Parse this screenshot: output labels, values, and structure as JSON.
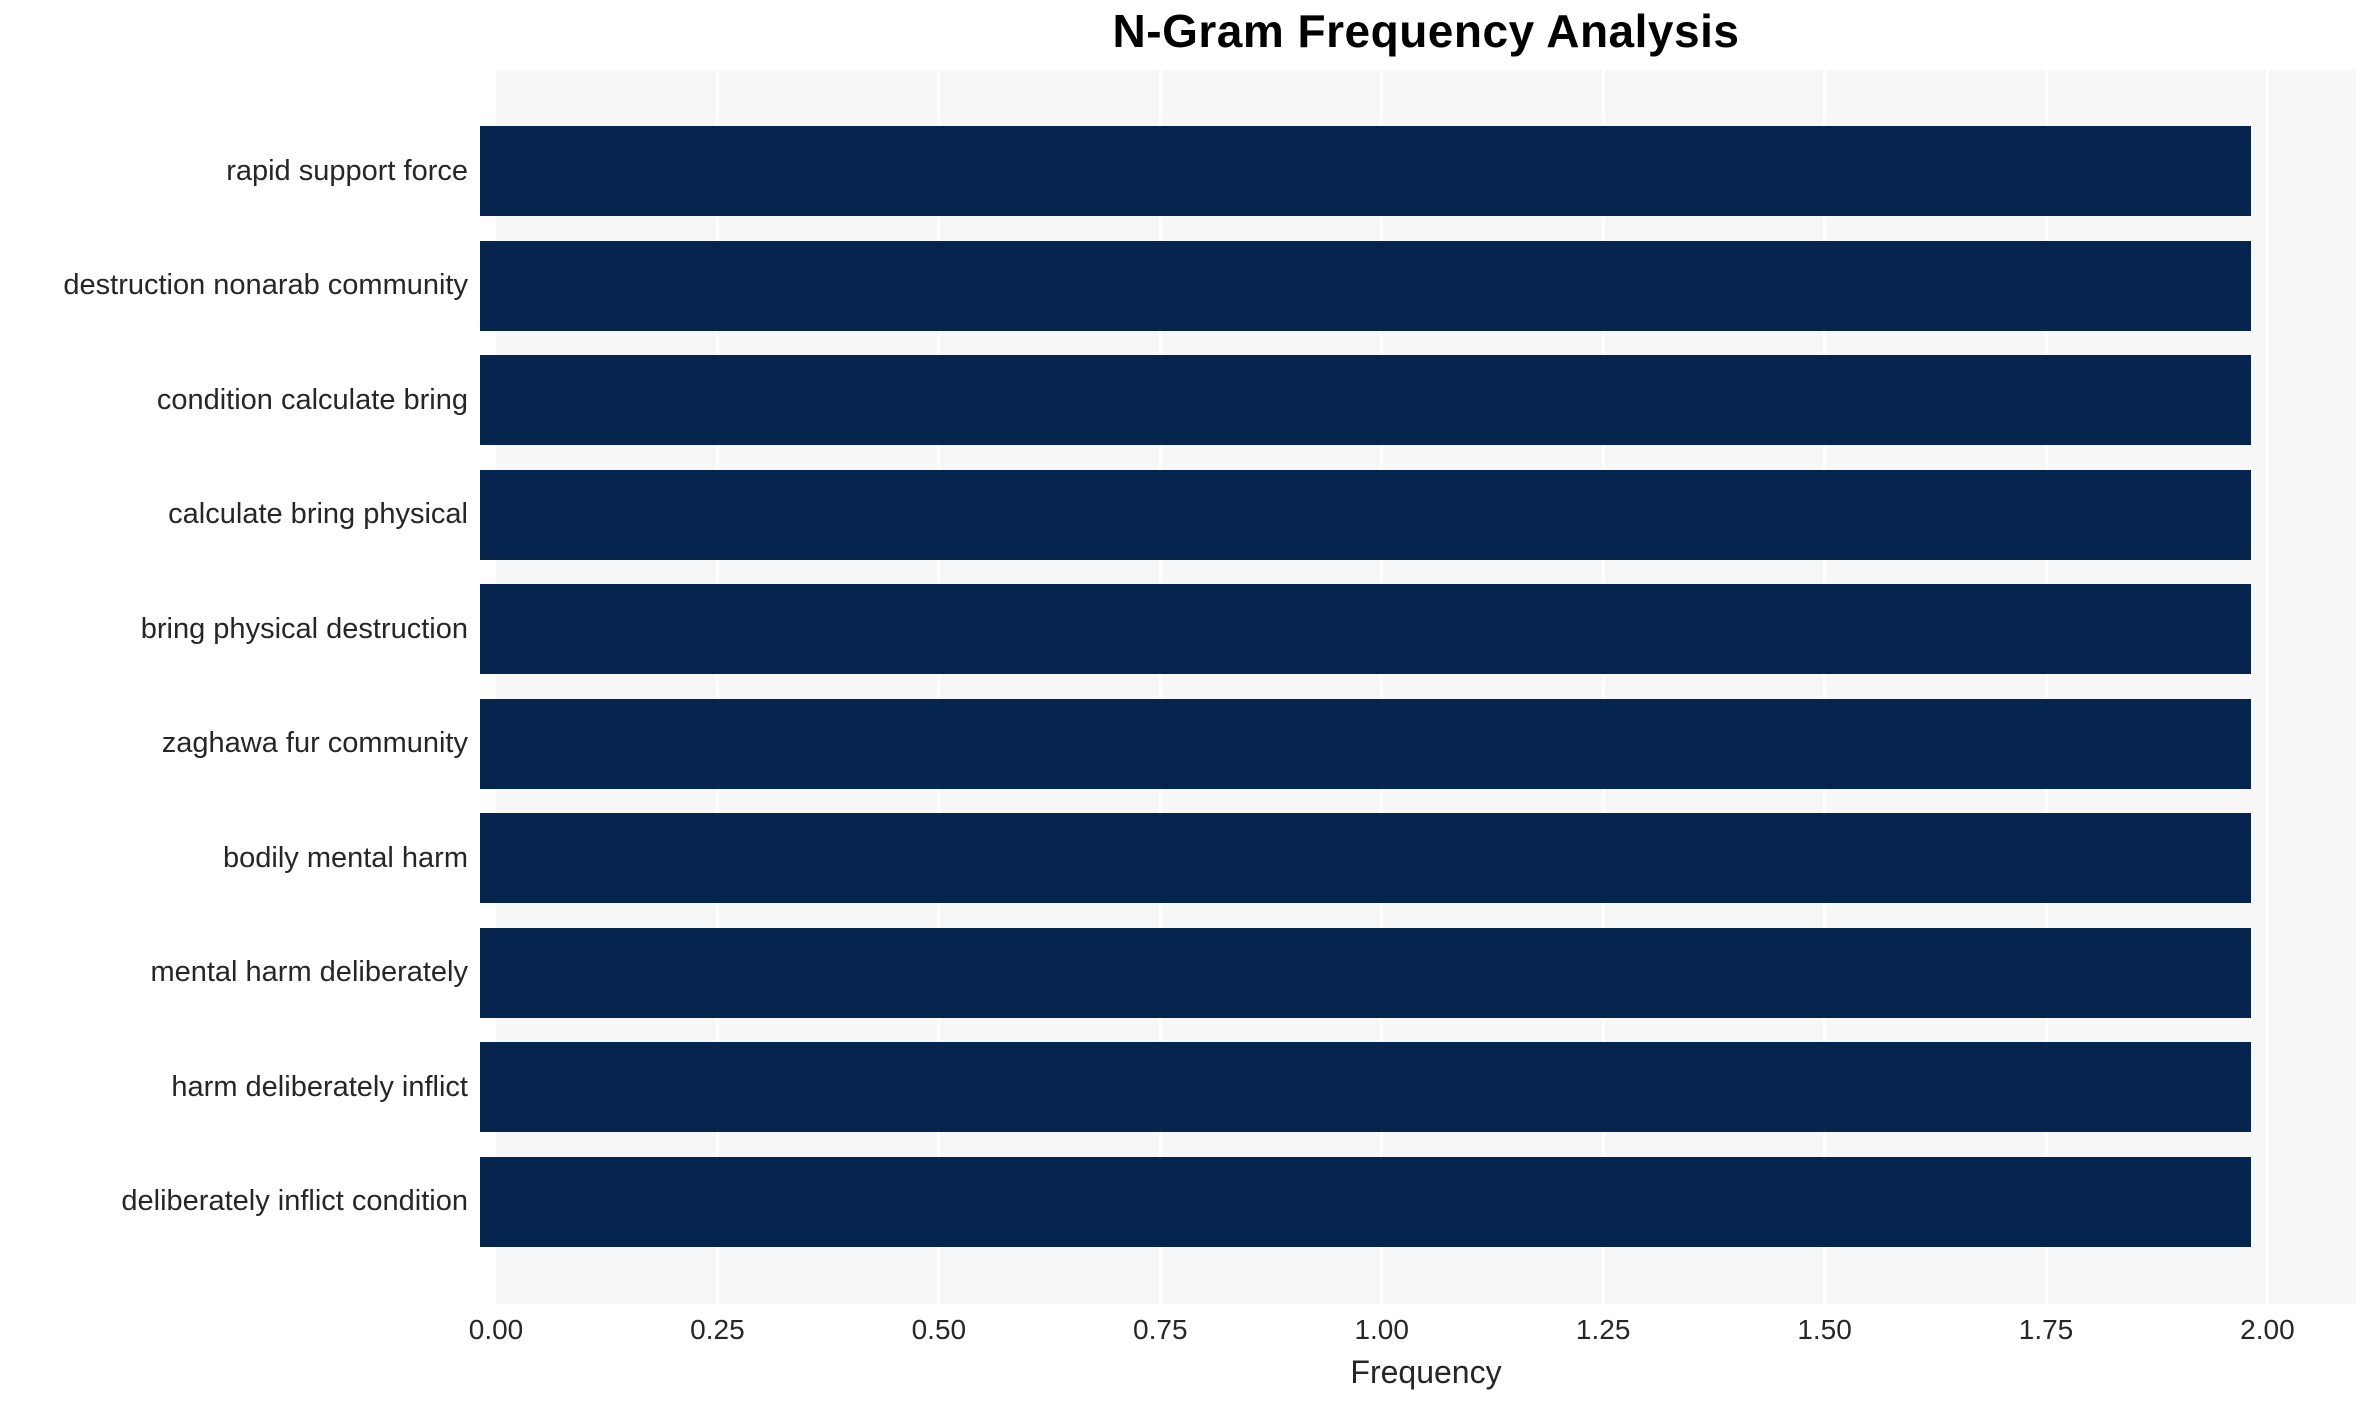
{
  "chart_data": {
    "type": "bar",
    "orientation": "horizontal",
    "title": "N-Gram Frequency Analysis",
    "xlabel": "Frequency",
    "ylabel": "",
    "categories": [
      "rapid support force",
      "destruction nonarab community",
      "condition calculate bring",
      "calculate bring physical",
      "bring physical destruction",
      "zaghawa fur community",
      "bodily mental harm",
      "mental harm deliberately",
      "harm deliberately inflict",
      "deliberately inflict condition"
    ],
    "values": [
      2,
      2,
      2,
      2,
      2,
      2,
      2,
      2,
      2,
      2
    ],
    "xlim": [
      0,
      2.1
    ],
    "xtick_values": [
      0,
      0.25,
      0.5,
      0.75,
      1.0,
      1.25,
      1.5,
      1.75,
      2.0
    ],
    "xtick_labels": [
      "0.00",
      "0.25",
      "0.50",
      "0.75",
      "1.00",
      "1.25",
      "1.50",
      "1.75",
      "2.00"
    ],
    "grid": "vertical-only",
    "legend": "none",
    "colors": {
      "bar": "#05254e",
      "plot_background": "#f7f7f8",
      "gridline": "#ffffff",
      "text": "#262626",
      "title": "#000000"
    }
  }
}
